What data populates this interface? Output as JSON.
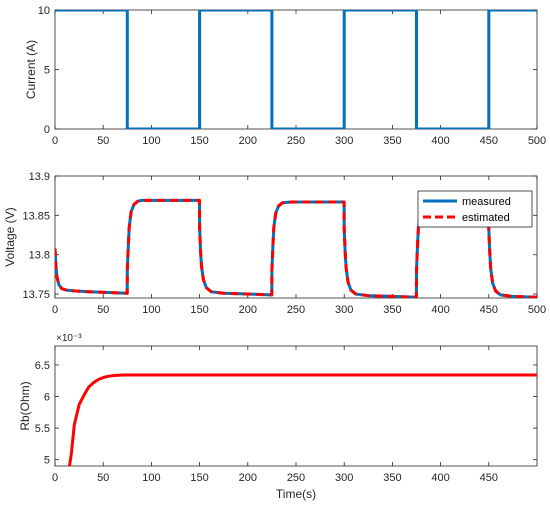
{
  "chart_data": [
    {
      "type": "line",
      "ylabel": "Current (A)",
      "xlabel": "",
      "xlim": [
        0,
        500
      ],
      "ylim": [
        0,
        10
      ],
      "xticks": [
        "0",
        "50",
        "100",
        "150",
        "200",
        "250",
        "300",
        "350",
        "400",
        "450",
        "500"
      ],
      "yticks": [
        "0",
        "5",
        "10"
      ],
      "grid": false,
      "series": [
        {
          "color": "#0072BD",
          "x": [
            0,
            75,
            75,
            150,
            150,
            225,
            225,
            300,
            300,
            375,
            375,
            450,
            450,
            500
          ],
          "y": [
            10,
            10,
            0,
            0,
            10,
            10,
            0,
            0,
            10,
            10,
            0,
            0,
            10,
            10
          ]
        }
      ]
    },
    {
      "type": "line",
      "ylabel": "Voltage (V)",
      "xlabel": "",
      "xlim": [
        0,
        500
      ],
      "ylim": [
        13.745,
        13.9
      ],
      "xticks": [
        "0",
        "50",
        "100",
        "150",
        "200",
        "250",
        "300",
        "350",
        "400",
        "450",
        "500"
      ],
      "yticks": [
        "13.75",
        "13.8",
        "13.85",
        "13.9"
      ],
      "grid": false,
      "legend_position": "top-right",
      "series": [
        {
          "name": "measured",
          "color": "#0072BD",
          "style": "solid",
          "x": [
            0,
            1,
            2,
            4,
            7,
            12,
            20,
            35,
            55,
            74.9,
            75,
            76,
            77,
            79,
            82,
            86,
            90,
            100,
            120,
            149.9,
            150,
            151,
            152,
            154,
            157,
            162,
            175,
            200,
            224.9,
            225,
            226,
            227,
            229,
            232,
            236,
            245,
            275,
            299.9,
            300,
            301,
            302,
            304,
            307,
            312,
            325,
            350,
            374.9,
            375,
            376,
            377,
            379,
            382,
            386,
            395,
            425,
            449.9,
            450,
            451,
            452,
            454,
            457,
            462,
            475,
            500
          ],
          "y": [
            13.808,
            13.785,
            13.772,
            13.762,
            13.757,
            13.755,
            13.754,
            13.753,
            13.752,
            13.751,
            13.78,
            13.81,
            13.835,
            13.855,
            13.864,
            13.868,
            13.869,
            13.869,
            13.869,
            13.869,
            13.835,
            13.805,
            13.785,
            13.768,
            13.758,
            13.753,
            13.751,
            13.75,
            13.749,
            13.78,
            13.81,
            13.835,
            13.853,
            13.862,
            13.866,
            13.867,
            13.867,
            13.867,
            13.833,
            13.803,
            13.783,
            13.765,
            13.755,
            13.75,
            13.748,
            13.747,
            13.746,
            13.78,
            13.81,
            13.835,
            13.853,
            13.862,
            13.866,
            13.867,
            13.867,
            13.867,
            13.833,
            13.803,
            13.782,
            13.764,
            13.754,
            13.749,
            13.747,
            13.746
          ]
        },
        {
          "name": "estimated",
          "color": "#FF0000",
          "style": "dashed",
          "x": [
            0,
            1,
            2,
            4,
            7,
            12,
            20,
            35,
            55,
            74.9,
            75,
            76,
            77,
            79,
            82,
            86,
            90,
            100,
            120,
            149.9,
            150,
            151,
            152,
            154,
            157,
            162,
            175,
            200,
            224.9,
            225,
            226,
            227,
            229,
            232,
            236,
            245,
            275,
            299.9,
            300,
            301,
            302,
            304,
            307,
            312,
            325,
            350,
            374.9,
            375,
            376,
            377,
            379,
            382,
            386,
            395,
            425,
            449.9,
            450,
            451,
            452,
            454,
            457,
            462,
            475,
            500
          ],
          "y": [
            13.808,
            13.785,
            13.772,
            13.762,
            13.757,
            13.755,
            13.754,
            13.753,
            13.752,
            13.751,
            13.78,
            13.81,
            13.835,
            13.855,
            13.864,
            13.868,
            13.869,
            13.869,
            13.869,
            13.869,
            13.835,
            13.805,
            13.785,
            13.768,
            13.758,
            13.753,
            13.751,
            13.75,
            13.749,
            13.78,
            13.81,
            13.835,
            13.853,
            13.862,
            13.866,
            13.867,
            13.867,
            13.867,
            13.833,
            13.803,
            13.783,
            13.765,
            13.755,
            13.75,
            13.748,
            13.747,
            13.746,
            13.78,
            13.81,
            13.835,
            13.853,
            13.862,
            13.866,
            13.867,
            13.867,
            13.867,
            13.833,
            13.803,
            13.782,
            13.764,
            13.754,
            13.749,
            13.747,
            13.746
          ]
        }
      ]
    },
    {
      "type": "line",
      "ylabel": "Rb(Ohm)",
      "xlabel": "Time(s)",
      "xlim": [
        0,
        500
      ],
      "ylim": [
        4.9,
        6.8
      ],
      "y_exponent": "×10⁻³",
      "xticks": [
        "0",
        "50",
        "100",
        "150",
        "200",
        "250",
        "300",
        "350",
        "400",
        "450"
      ],
      "yticks": [
        "5",
        "5.5",
        "6",
        "6.5"
      ],
      "grid": false,
      "series": [
        {
          "color": "#FF0000",
          "x": [
            15,
            17,
            20,
            25,
            30,
            35,
            40,
            45,
            50,
            55,
            60,
            70,
            80,
            100,
            150,
            200,
            250,
            300,
            350,
            400,
            450,
            500
          ],
          "y": [
            4.9,
            5.1,
            5.55,
            5.87,
            6.02,
            6.15,
            6.22,
            6.27,
            6.3,
            6.32,
            6.33,
            6.34,
            6.34,
            6.34,
            6.34,
            6.34,
            6.34,
            6.34,
            6.34,
            6.34,
            6.34,
            6.34
          ]
        }
      ]
    }
  ]
}
